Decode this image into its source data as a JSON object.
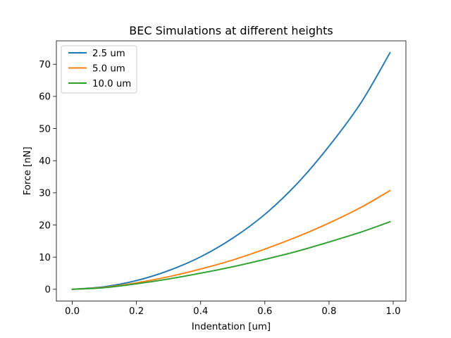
{
  "chart_data": {
    "type": "line",
    "title": "BEC Simulations at different heights",
    "xlabel": "Indentation [um]",
    "ylabel": "Force [nN]",
    "xlim": [
      -0.0495,
      1.0395
    ],
    "ylim": [
      -3.68,
      77.28
    ],
    "xticks": [
      0.0,
      0.2,
      0.4,
      0.6,
      0.8,
      1.0
    ],
    "xtick_labels": [
      "0.0",
      "0.2",
      "0.4",
      "0.6",
      "0.8",
      "1.0"
    ],
    "yticks": [
      0,
      10,
      20,
      30,
      40,
      50,
      60,
      70
    ],
    "ytick_labels": [
      "0",
      "10",
      "20",
      "30",
      "40",
      "50",
      "60",
      "70"
    ],
    "grid": false,
    "legend_position": "top-left",
    "x": [
      0.0,
      0.1,
      0.2,
      0.3,
      0.4,
      0.5,
      0.6,
      0.7,
      0.8,
      0.9,
      0.99
    ],
    "series": [
      {
        "name": "2.5 um",
        "color": "#1f77b4",
        "values": [
          0.0,
          0.8,
          2.7,
          5.8,
          10.1,
          15.9,
          23.3,
          32.8,
          44.5,
          58.1,
          73.6
        ]
      },
      {
        "name": "5.0 um",
        "color": "#ff7f0e",
        "values": [
          0.0,
          0.6,
          2.0,
          3.9,
          6.3,
          9.1,
          12.5,
          16.3,
          20.6,
          25.5,
          30.7
        ]
      },
      {
        "name": "10.0 um",
        "color": "#2ca02c",
        "values": [
          0.0,
          0.5,
          1.7,
          3.2,
          5.0,
          7.0,
          9.3,
          11.8,
          14.7,
          17.8,
          21.0
        ]
      }
    ]
  }
}
